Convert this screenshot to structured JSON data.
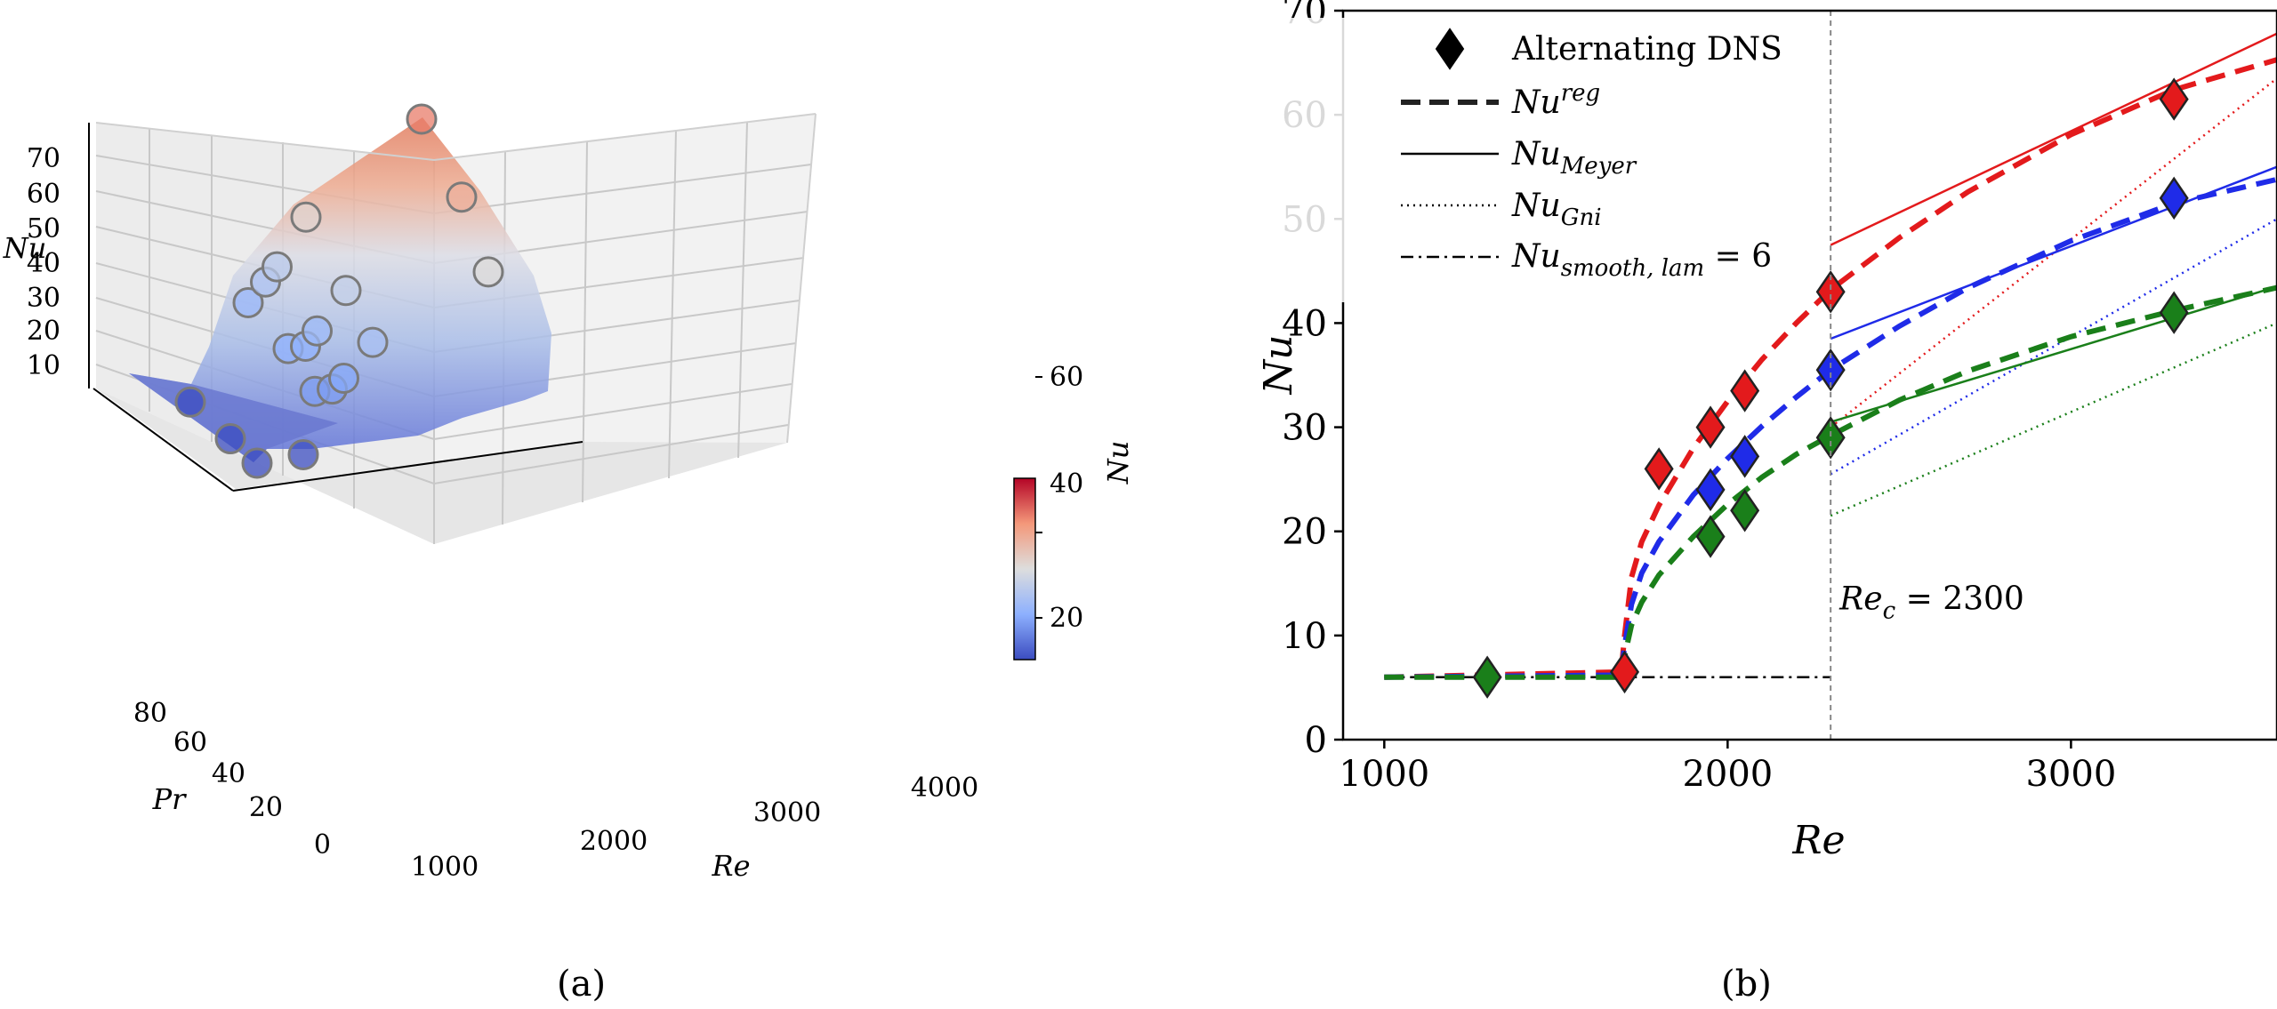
{
  "captions": {
    "a": "(a)",
    "b": "(b)"
  },
  "colors": {
    "red": "#e31a1c",
    "blue": "#1f2be8",
    "green": "#1a7f1a",
    "surface_low": "#5b6dd6",
    "surface_high": "#e07a5c"
  },
  "chart_data": [
    {
      "type": "scatter",
      "subtype": "3d-surface",
      "title": "",
      "xlabel": "Re",
      "ylabel": "Pr",
      "zlabel": "Nu",
      "colorbar_label": "Nu",
      "colormap": "coolwarm",
      "xticks": [
        "1000",
        "2000",
        "3000",
        "4000"
      ],
      "yticks": [
        "0",
        "20",
        "40",
        "60",
        "80"
      ],
      "zticks": [
        "10",
        "20",
        "30",
        "40",
        "50",
        "60",
        "70"
      ],
      "colorbar_ticks": [
        "20",
        "40",
        "60"
      ],
      "colorbar_range": [
        6,
        75
      ],
      "points": [
        {
          "re": 1300,
          "pr": 10,
          "nu": 6
        },
        {
          "re": 1300,
          "pr": 30,
          "nu": 6
        },
        {
          "re": 1300,
          "pr": 60,
          "nu": 6
        },
        {
          "re": 1700,
          "pr": 10,
          "nu": 6.5
        },
        {
          "re": 1800,
          "pr": 10,
          "nu": 20
        },
        {
          "re": 1800,
          "pr": 30,
          "nu": 24
        },
        {
          "re": 1800,
          "pr": 60,
          "nu": 26
        },
        {
          "re": 1950,
          "pr": 10,
          "nu": 20
        },
        {
          "re": 1950,
          "pr": 30,
          "nu": 24
        },
        {
          "re": 1950,
          "pr": 60,
          "nu": 30
        },
        {
          "re": 2050,
          "pr": 10,
          "nu": 22
        },
        {
          "re": 2050,
          "pr": 30,
          "nu": 27
        },
        {
          "re": 2050,
          "pr": 60,
          "nu": 33
        },
        {
          "re": 2300,
          "pr": 10,
          "nu": 29
        },
        {
          "re": 2300,
          "pr": 30,
          "nu": 35
        },
        {
          "re": 2300,
          "pr": 60,
          "nu": 43
        },
        {
          "re": 3300,
          "pr": 10,
          "nu": 41
        },
        {
          "re": 3300,
          "pr": 30,
          "nu": 52
        },
        {
          "re": 3300,
          "pr": 60,
          "nu": 61
        }
      ]
    },
    {
      "type": "line",
      "title": "",
      "xlabel": "Re",
      "ylabel": "Nu",
      "xlim": [
        880,
        3600
      ],
      "ylim": [
        0,
        70
      ],
      "xticks": [
        1000,
        2000,
        3000
      ],
      "yticks": [
        0,
        10,
        20,
        30,
        40,
        50,
        60,
        70
      ],
      "annotation": {
        "text": "Re",
        "sub": "c",
        "rest": " = 2300",
        "x": 2300
      },
      "legend": {
        "placement": "top-left",
        "entries": [
          {
            "main": "Alternating DNS",
            "sub": "",
            "sup": "",
            "style": "diamond"
          },
          {
            "main": "Nu",
            "sub": "",
            "sup": "reg",
            "style": "dashed"
          },
          {
            "main": "Nu",
            "sub": "Meyer",
            "sup": "",
            "style": "solid"
          },
          {
            "main": "Nu",
            "sub": "Gni",
            "sup": "",
            "style": "dotted"
          },
          {
            "main": "Nu",
            "sub": "smooth, lam",
            "sup": "",
            "tail": " = 6",
            "style": "dashdot"
          }
        ]
      },
      "laminar_line": {
        "x": [
          1000,
          2300
        ],
        "y": [
          6,
          6
        ]
      },
      "series": [
        {
          "color": "red",
          "dns": [
            [
              1700,
              6.5
            ],
            [
              1800,
              26
            ],
            [
              1950,
              30
            ],
            [
              2050,
              33.5
            ],
            [
              2300,
              43
            ],
            [
              3300,
              61.5
            ]
          ],
          "reg": [
            [
              1000,
              6
            ],
            [
              1690,
              6.5
            ],
            [
              1700,
              10
            ],
            [
              1720,
              15.6
            ],
            [
              1750,
              19
            ],
            [
              1800,
              22.5
            ],
            [
              1900,
              28
            ],
            [
              2000,
              32.5
            ],
            [
              2100,
              36.5
            ],
            [
              2200,
              40
            ],
            [
              2300,
              43.2
            ],
            [
              2500,
              48.2
            ],
            [
              2700,
              52.6
            ],
            [
              3000,
              58.1
            ],
            [
              3300,
              62.4
            ],
            [
              3600,
              65.3
            ]
          ],
          "meyer": [
            [
              2300,
              47.5
            ],
            [
              3600,
              67.8
            ]
          ],
          "gni": [
            [
              2300,
              30
            ],
            [
              3600,
              63.5
            ]
          ]
        },
        {
          "color": "blue",
          "dns": [
            [
              1950,
              24
            ],
            [
              2050,
              27.2
            ],
            [
              2300,
              35.5
            ],
            [
              3300,
              52
            ]
          ],
          "reg": [
            [
              1000,
              6
            ],
            [
              1690,
              6.2
            ],
            [
              1700,
              9
            ],
            [
              1720,
              13
            ],
            [
              1750,
              16
            ],
            [
              1800,
              19
            ],
            [
              1900,
              23.5
            ],
            [
              2000,
              27
            ],
            [
              2100,
              30.1
            ],
            [
              2200,
              32.9
            ],
            [
              2300,
              35.5
            ],
            [
              2500,
              39.7
            ],
            [
              2700,
              43.4
            ],
            [
              3000,
              47.9
            ],
            [
              3300,
              51.5
            ],
            [
              3600,
              53.8
            ]
          ],
          "meyer": [
            [
              2300,
              38.5
            ],
            [
              3600,
              55
            ]
          ],
          "gni": [
            [
              2300,
              25.5
            ],
            [
              3600,
              50
            ]
          ]
        },
        {
          "color": "green",
          "dns": [
            [
              1300,
              6
            ],
            [
              1950,
              19.5
            ],
            [
              2050,
              22
            ],
            [
              2300,
              29
            ],
            [
              3300,
              41
            ]
          ],
          "reg": [
            [
              1000,
              6
            ],
            [
              1690,
              6
            ],
            [
              1700,
              8
            ],
            [
              1720,
              11
            ],
            [
              1750,
              13.2
            ],
            [
              1800,
              15.8
            ],
            [
              1900,
              19.5
            ],
            [
              2000,
              22.6
            ],
            [
              2100,
              25.2
            ],
            [
              2200,
              27.4
            ],
            [
              2300,
              29.2
            ],
            [
              2500,
              32.6
            ],
            [
              2700,
              35.4
            ],
            [
              3000,
              38.7
            ],
            [
              3300,
              41.2
            ],
            [
              3600,
              43.4
            ]
          ],
          "meyer": [
            [
              2300,
              30.5
            ],
            [
              3600,
              43.5
            ]
          ],
          "gni": [
            [
              2300,
              21.5
            ],
            [
              3600,
              40
            ]
          ]
        }
      ]
    }
  ]
}
